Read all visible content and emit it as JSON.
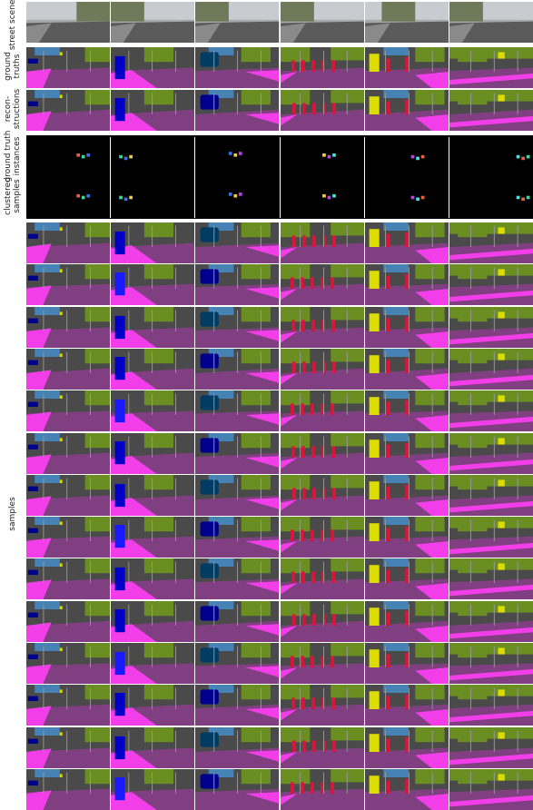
{
  "labels": {
    "street_scenes": "street scenes",
    "ground_truths": "ground\ntruths",
    "reconstructions": "recon-\nstructions",
    "ground_truth_instances": "ground truth\ninstances",
    "clustered_samples": "clustered\nsamples",
    "samples": "samples"
  },
  "colors": {
    "road": "#7f3f80",
    "sidewalk": "#f23ee8",
    "building": "#4a4a4a",
    "vegetation": "#6b8e23",
    "sky": "#4682b4",
    "car": "#00008e",
    "person": "#dc143c",
    "sign": "#dcdc00",
    "bus": "#003c64",
    "photo_dark": "#5a5a5a",
    "photo_light": "#a8a8a8"
  },
  "columns": 6,
  "sample_rows": 14
}
